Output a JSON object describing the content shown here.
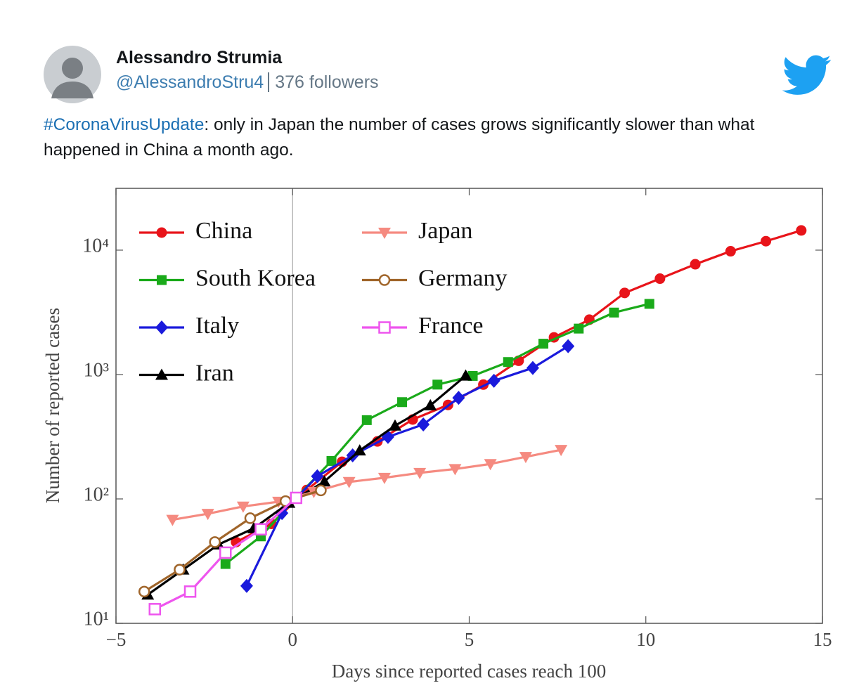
{
  "tweet": {
    "name": "Alessandro Strumia",
    "handle": "@AlessandroStru4",
    "followers": "376 followers",
    "hashtag": "#CoronaVirusUpdate",
    "text": ": only in Japan the number of cases grows significantly slower than what happened in China a month ago."
  },
  "chart_data": {
    "type": "line",
    "xlabel": "Days since reported cases reach 100",
    "ylabel": "Number of reported cases",
    "xlim": [
      -5,
      15
    ],
    "xticks": [
      {
        "value": -5,
        "label": "−5"
      },
      0,
      5,
      10,
      15
    ],
    "ylim": [
      10,
      31400
    ],
    "yscale": "log",
    "yticks": [
      {
        "value": 10,
        "label": "10¹"
      },
      {
        "value": 100,
        "label": "10²"
      },
      {
        "value": 1000,
        "label": "10³"
      },
      {
        "value": 10000,
        "label": "10⁴"
      }
    ],
    "zero_line": true,
    "series": [
      {
        "name": "China",
        "color": "#e8141a",
        "marker": "circle",
        "x": [
          -1.6,
          -0.6,
          0.4,
          1.4,
          2.4,
          3.4,
          4.4,
          5.4,
          6.4,
          7.4,
          8.4,
          9.4,
          10.4,
          11.4,
          12.4,
          13.4,
          14.4
        ],
        "values": [
          45,
          63,
          118,
          199,
          290,
          435,
          570,
          830,
          1290,
          1990,
          2760,
          4530,
          5900,
          7700,
          9800,
          11800,
          14400
        ]
      },
      {
        "name": "South Korea",
        "color": "#1aaa1a",
        "marker": "square",
        "x": [
          -1.9,
          -0.9,
          0.1,
          1.1,
          2.1,
          3.1,
          4.1,
          5.1,
          6.1,
          7.1,
          8.1,
          9.1,
          10.1
        ],
        "values": [
          30,
          50,
          102,
          202,
          430,
          600,
          830,
          975,
          1260,
          1770,
          2340,
          3150,
          3700
        ]
      },
      {
        "name": "Italy",
        "color": "#1a1adc",
        "marker": "diamond",
        "x": [
          -1.3,
          -0.3,
          0.7,
          1.7,
          2.7,
          3.7,
          4.7,
          5.7,
          6.8,
          7.8
        ],
        "values": [
          20,
          77,
          152,
          224,
          315,
          397,
          650,
          890,
          1130,
          1690
        ]
      },
      {
        "name": "Iran",
        "color": "#000000",
        "marker": "triangle-up",
        "x": [
          -4.1,
          -3.1,
          -2.1,
          -1.1,
          -0.1,
          0.9,
          1.9,
          2.9,
          3.9,
          4.9
        ],
        "values": [
          17,
          27,
          43,
          58,
          93,
          138,
          245,
          388,
          565,
          978
        ]
      },
      {
        "name": "Japan",
        "color": "#f58a80",
        "marker": "triangle-down",
        "x": [
          -3.4,
          -2.4,
          -1.4,
          -0.4,
          0.6,
          1.6,
          2.6,
          3.6,
          4.6,
          5.6,
          6.6,
          7.6
        ],
        "values": [
          68,
          76,
          87,
          95,
          114,
          137,
          148,
          162,
          174,
          191,
          218,
          248
        ]
      },
      {
        "name": "Germany",
        "color": "#a0652a",
        "marker": "open-circle",
        "x": [
          -4.2,
          -3.2,
          -2.2,
          -1.2,
          -0.2,
          0.8
        ],
        "values": [
          18,
          27,
          45,
          70,
          96,
          117
        ]
      },
      {
        "name": "France",
        "color": "#ee55ee",
        "marker": "open-square",
        "x": [
          -3.9,
          -2.9,
          -1.9,
          -0.9,
          0.1
        ],
        "values": [
          13,
          18,
          37,
          57,
          102
        ]
      }
    ]
  }
}
